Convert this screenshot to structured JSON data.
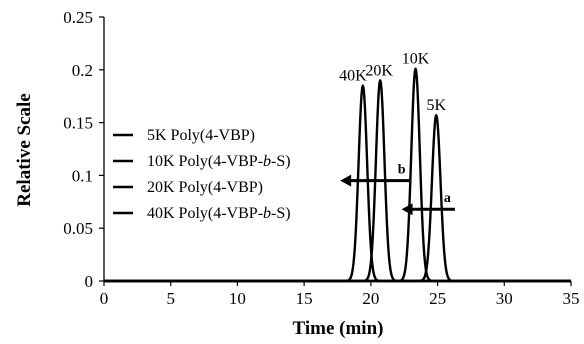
{
  "chart_data": {
    "type": "line",
    "xlabel": "Time (min)",
    "ylabel": "Relative Scale",
    "xlim": [
      0,
      35
    ],
    "ylim": [
      0,
      0.25
    ],
    "x_ticks": [
      "0",
      "5",
      "10",
      "15",
      "20",
      "25",
      "30",
      "35"
    ],
    "y_ticks": [
      "0",
      "0.05",
      "0.1",
      "0.15",
      "0.2",
      "0.25"
    ],
    "grid": false,
    "legend_position": "left",
    "series": [
      {
        "name": "5K Poly(4-VBP)",
        "peak_x": 24.9,
        "peak_y": 0.157,
        "label": "5K"
      },
      {
        "name": "10K Poly(4-VBP-b-S)",
        "peak_x": 23.35,
        "peak_y": 0.201,
        "label": "10K"
      },
      {
        "name": "20K Poly(4-VBP)",
        "peak_x": 20.7,
        "peak_y": 0.19,
        "label": "20K"
      },
      {
        "name": "40K Poly(4-VBP-b-S)",
        "peak_x": 19.4,
        "peak_y": 0.185,
        "label": "40K"
      }
    ],
    "annotations": [
      {
        "text": "a",
        "from_x": 26.3,
        "to_x": 22.3,
        "y": 0.068
      },
      {
        "text": "b",
        "from_x": 22.9,
        "to_x": 17.7,
        "y": 0.095
      }
    ]
  }
}
